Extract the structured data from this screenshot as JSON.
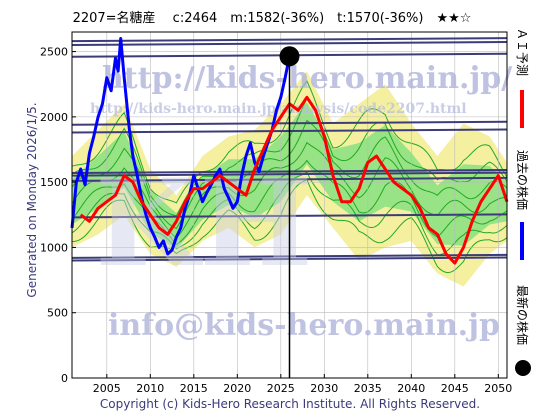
{
  "header": {
    "title": "2207=名糖産　 c:2464　m:1582(-36%)　t:1570(-36%)　★★☆"
  },
  "side_text": "Generated on Monday 2026/1/5.",
  "copyright": "Copyright (c) Kids-Hero Research Institute. All Rights Reserved.",
  "watermarks": {
    "url": "http://kids-hero.main.jp/",
    "analysis_url": "http://kids-hero.main.jp/analysis/code2207.html",
    "email": "info@kids-hero.main.jp",
    "logo": "KH"
  },
  "legend": {
    "ai": "ＡＩ予測",
    "past": "過去の株価",
    "latest": "最新の株価"
  },
  "colors": {
    "ai": "#ff0000",
    "past": "#0000ff",
    "latest": "#000000",
    "green_lines": "#22aa22",
    "band_green": "#7fe07f",
    "band_yellow": "#f5f0a0",
    "hlines": "#3c3c78",
    "grid": "#bbbbbb"
  },
  "chart_data": {
    "type": "line",
    "title": "2207=名糖産　 c:2464　m:1582(-36%)　t:1570(-36%)　★★☆",
    "xlim": [
      2001,
      2051
    ],
    "ylim": [
      0,
      2650
    ],
    "xticks": [
      2005,
      2010,
      2015,
      2020,
      2025,
      2030,
      2035,
      2040,
      2045,
      2050
    ],
    "yticks": [
      0,
      500,
      1000,
      1500,
      2000,
      2500
    ],
    "grid": true,
    "latest_point": {
      "x": 2026.0,
      "y": 2464
    },
    "hlines": [
      2580,
      2550,
      2460,
      1940,
      1880,
      1570,
      1550,
      1510,
      1230,
      920,
      900
    ],
    "series": [
      {
        "name": "過去の株価",
        "color": "#0000ff",
        "x": [
          2001.0,
          2001.5,
          2002.0,
          2002.5,
          2003.0,
          2003.5,
          2004.0,
          2004.5,
          2005.0,
          2005.5,
          2006.0,
          2006.3,
          2006.6,
          2007.0,
          2007.3,
          2007.6,
          2008.0,
          2008.5,
          2009.0,
          2009.5,
          2010.0,
          2010.5,
          2011.0,
          2011.5,
          2012.0,
          2012.5,
          2013.0,
          2013.5,
          2014.0,
          2014.5,
          2015.0,
          2015.5,
          2016.0,
          2016.5,
          2017.0,
          2017.5,
          2018.0,
          2018.5,
          2019.0,
          2019.5,
          2020.0,
          2020.5,
          2021.0,
          2021.5,
          2022.0,
          2022.5,
          2023.0,
          2023.5,
          2024.0,
          2024.5,
          2025.0,
          2025.5,
          2026.0
        ],
        "y": [
          1150,
          1500,
          1600,
          1480,
          1720,
          1850,
          2000,
          2100,
          2300,
          2200,
          2450,
          2350,
          2600,
          2300,
          2100,
          1900,
          1700,
          1550,
          1380,
          1250,
          1150,
          1080,
          1000,
          1050,
          950,
          980,
          1080,
          1150,
          1300,
          1400,
          1550,
          1450,
          1350,
          1420,
          1480,
          1550,
          1600,
          1450,
          1380,
          1300,
          1350,
          1550,
          1700,
          1800,
          1650,
          1580,
          1700,
          1800,
          1900,
          2050,
          2150,
          2300,
          2464
        ]
      },
      {
        "name": "ＡＩ予測",
        "color": "#ff0000",
        "x": [
          2002.0,
          2003.0,
          2004.0,
          2005.0,
          2006.0,
          2007.0,
          2008.0,
          2009.0,
          2010.0,
          2011.0,
          2012.0,
          2013.0,
          2014.0,
          2015.0,
          2016.0,
          2017.0,
          2018.0,
          2019.0,
          2020.0,
          2021.0,
          2022.0,
          2023.0,
          2024.0,
          2025.0,
          2026.0,
          2027.0,
          2028.0,
          2029.0,
          2030.0,
          2031.0,
          2032.0,
          2033.0,
          2034.0,
          2035.0,
          2036.0,
          2037.0,
          2038.0,
          2039.0,
          2040.0,
          2041.0,
          2042.0,
          2043.0,
          2044.0,
          2045.0,
          2046.0,
          2047.0,
          2048.0,
          2049.0,
          2050.0,
          2051.0
        ],
        "y": [
          1250,
          1200,
          1300,
          1350,
          1400,
          1550,
          1500,
          1350,
          1250,
          1150,
          1100,
          1200,
          1350,
          1450,
          1450,
          1500,
          1550,
          1500,
          1450,
          1400,
          1600,
          1750,
          1900,
          2000,
          2100,
          2050,
          2150,
          2050,
          1850,
          1550,
          1350,
          1350,
          1450,
          1650,
          1700,
          1600,
          1500,
          1450,
          1400,
          1300,
          1150,
          1100,
          950,
          880,
          1000,
          1200,
          1350,
          1450,
          1550,
          1350
        ]
      },
      {
        "name": "upper_band",
        "color": "#22aa22",
        "x": [
          2001,
          2004,
          2007,
          2010,
          2013,
          2016,
          2019,
          2022,
          2025,
          2028,
          2031,
          2034,
          2037,
          2040,
          2043,
          2046,
          2049,
          2051
        ],
        "y": [
          1700,
          1900,
          2100,
          1600,
          1400,
          1700,
          1850,
          1900,
          2100,
          2350,
          1950,
          2100,
          2250,
          1950,
          1700,
          1950,
          1850,
          1650
        ]
      },
      {
        "name": "lower_band",
        "color": "#22aa22",
        "x": [
          2001,
          2004,
          2007,
          2010,
          2013,
          2016,
          2019,
          2022,
          2025,
          2028,
          2031,
          2034,
          2037,
          2040,
          2043,
          2046,
          2049,
          2051
        ],
        "y": [
          1000,
          1100,
          1250,
          950,
          850,
          1050,
          1150,
          1000,
          1100,
          1400,
          1150,
          900,
          1000,
          1050,
          800,
          700,
          950,
          1050
        ]
      }
    ]
  }
}
